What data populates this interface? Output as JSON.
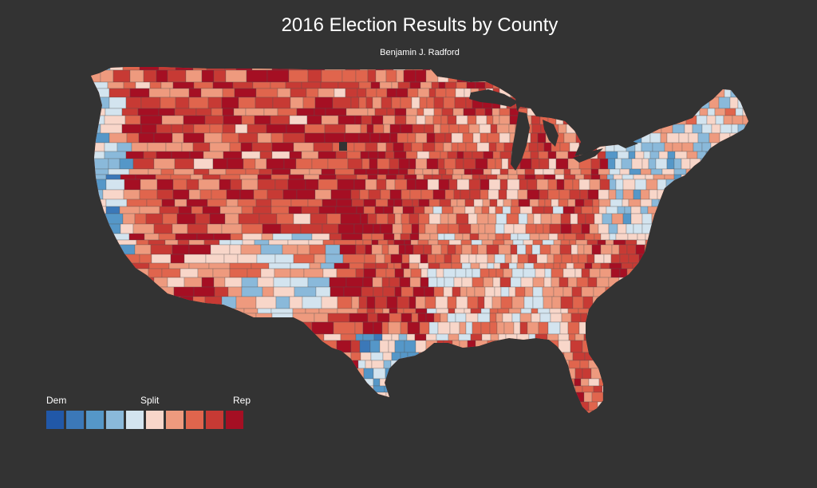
{
  "title": "2016 Election Results by County",
  "subtitle": "Benjamin J. Radford",
  "legend": {
    "labels": {
      "dem": "Dem",
      "split": "Split",
      "rep": "Rep"
    },
    "scale": [
      "#2158a8",
      "#3b78b8",
      "#5597c8",
      "#8ab9da",
      "#d3e4ef",
      "#f8d6c9",
      "#ee9a7e",
      "#e0654d",
      "#c73a34",
      "#a50f23"
    ]
  },
  "colors": {
    "background": "#333333",
    "text": "#ffffff",
    "county_border": "#555555",
    "missing": "#333333"
  }
}
